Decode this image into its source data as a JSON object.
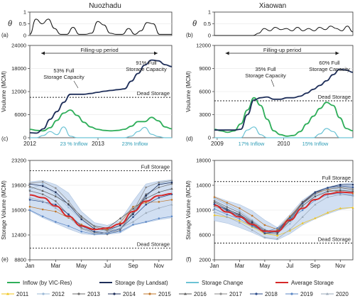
{
  "titles": {
    "left": "Nuozhadu",
    "right": "Xiaowan"
  },
  "panel_letters": {
    "a": "(a)",
    "b": "(b)",
    "c": "(c)",
    "d": "(d)",
    "e": "(e)",
    "f": "(f)"
  },
  "labels": {
    "theta": "θ",
    "volume_ylabel": "Voulume (MCM)",
    "storage_ylabel": "Storage Volume (MCM)",
    "filling": "Filling-up period",
    "dead_storage": "Dead Storage",
    "full_storage": "Full Storage"
  },
  "colors": {
    "inflow": "#2fae5a",
    "storage": "#1f2f5a",
    "change": "#6cc3d5",
    "average": "#d62828",
    "band": "#c9daf0",
    "band_edge": "#9fb8d8",
    "y2011": "#f0c419",
    "y2012": "#9bb8d6",
    "y2013": "#6d6d6d",
    "y2014": "#1f2f5a",
    "y2015": "#c0772a",
    "y2016": "#555555",
    "y2017": "#8a8a8a",
    "y2018": "#2a4a8a",
    "y2019": "#5a86c5",
    "y2020": "#9aa8b8"
  },
  "chart_data": [
    {
      "id": "a",
      "type": "line",
      "ylabel": "θ",
      "yticks": [
        "0",
        "0.5",
        "1"
      ],
      "ylim": [
        0,
        1
      ],
      "series": [
        {
          "values": [
            0.05,
            0.7,
            0.5,
            0.7,
            0.3,
            0.05,
            0.05,
            0.35,
            0.05,
            0.05,
            0.1,
            0.6,
            0.45,
            0.1,
            0.05,
            0.05,
            0.3,
            0.05,
            0.2,
            0.55,
            0.5,
            0.05,
            0.05,
            0.05
          ]
        }
      ]
    },
    {
      "id": "b",
      "type": "line",
      "ylabel": "θ",
      "yticks": [
        "0",
        "0.5",
        "1"
      ],
      "ylim": [
        0,
        1
      ],
      "series": [
        {
          "values": [
            0,
            0,
            0,
            0,
            0,
            0,
            0,
            0,
            0.1,
            0.3,
            0.2,
            0.35,
            0.25,
            0.3,
            0.2,
            0.35,
            0.2,
            0.3,
            0.2,
            0.35,
            0.25,
            0.4,
            0.3,
            0.2,
            0.4,
            0.15
          ]
        }
      ]
    },
    {
      "id": "c",
      "type": "line",
      "ylabel": "Voulume (MCM)",
      "yticks": [
        "0",
        "6000",
        "12000",
        "18000",
        "24000"
      ],
      "ylim": [
        0,
        24000
      ],
      "xticks": [
        "2012",
        "2013"
      ],
      "dead_storage": 10500,
      "annotations": [
        "53% Full Storage Capacity",
        "91% Full Storage Capacity",
        "23 % Inflow",
        "23% Inflow"
      ],
      "inflow": [
        2200,
        1900,
        1800,
        2600,
        4500,
        6400,
        7200,
        5800,
        4000,
        2800,
        2200,
        1900,
        1800,
        1900,
        2200,
        3000,
        4200,
        4200,
        5300,
        4400,
        2800,
        2300
      ],
      "storage": [
        1300,
        1200,
        2300,
        4800,
        6800,
        9200,
        11300,
        11300,
        11300,
        11500,
        11800,
        12100,
        12300,
        12500,
        12700,
        14700,
        16700,
        18900,
        20200,
        20000,
        19000,
        18500
      ],
      "change": [
        0,
        0,
        600,
        1600,
        800,
        2800,
        400,
        0,
        0,
        0,
        0,
        0,
        0,
        0,
        0,
        400,
        1600,
        2700,
        900,
        300,
        0,
        0
      ]
    },
    {
      "id": "d",
      "type": "line",
      "ylabel": "Voulume (MCM)",
      "yticks": [
        "0",
        "3000",
        "6000",
        "9000",
        "12000"
      ],
      "ylim": [
        0,
        12000
      ],
      "xticks": [
        "2009",
        "2010"
      ],
      "dead_storage": 4800,
      "annotations": [
        "35% Full Storage Capacity",
        "60% Full Storage Capacity",
        "17% Inflow",
        "15% Inflow"
      ],
      "inflow": [
        1100,
        900,
        700,
        900,
        1800,
        3600,
        5200,
        4200,
        2400,
        900,
        400,
        200,
        300,
        800,
        1800,
        2800,
        3800,
        4600,
        4200,
        2600,
        1200,
        900
      ],
      "storage": [
        1000,
        1000,
        1000,
        1000,
        1100,
        3000,
        4900,
        5200,
        5300,
        5000,
        5000,
        5200,
        5200,
        5400,
        5800,
        6300,
        6800,
        7400,
        8200,
        8900,
        8800,
        8500
      ],
      "change": [
        0,
        0,
        0,
        0,
        0,
        1000,
        1400,
        400,
        0,
        0,
        0,
        0,
        0,
        0,
        0,
        0,
        500,
        1200,
        800,
        0,
        0,
        0
      ]
    },
    {
      "id": "e",
      "type": "line",
      "ylabel": "Storage Volume (MCM)",
      "yticks": [
        "8800",
        "12400",
        "16000",
        "19600",
        "23200"
      ],
      "ylim": [
        8800,
        23200
      ],
      "xticks": [
        "Jan",
        "Mar",
        "May",
        "Jul",
        "Sep",
        "Nov"
      ],
      "full_storage": 21700,
      "dead_storage": 10500,
      "band_upper": [
        20100,
        20300,
        19700,
        18500,
        15800,
        14200,
        13800,
        14500,
        17300,
        19800,
        20200,
        20400
      ],
      "band_lower": [
        15900,
        14900,
        14100,
        13300,
        12600,
        12400,
        12500,
        12700,
        13800,
        14200,
        14600,
        14900
      ],
      "average": [
        18200,
        17800,
        16600,
        15100,
        13700,
        13200,
        13400,
        14000,
        15800,
        17300,
        18100,
        18400
      ],
      "years": [
        {
          "name": "2011",
          "values": [
            null,
            null,
            null,
            null,
            null,
            null,
            null,
            null,
            null,
            null,
            null,
            null
          ]
        },
        {
          "name": "2012",
          "values": [
            19000,
            19800,
            18300,
            16400,
            14600,
            13300,
            12900,
            13800,
            15600,
            17900,
            19800,
            20200
          ]
        },
        {
          "name": "2013",
          "values": [
            18800,
            18300,
            17300,
            15300,
            13400,
            12800,
            12500,
            13100,
            15700,
            18300,
            19300,
            19800
          ]
        },
        {
          "name": "2014",
          "values": [
            19800,
            19500,
            18600,
            16800,
            14700,
            13300,
            13100,
            13800,
            15400,
            18100,
            19700,
            20000
          ]
        },
        {
          "name": "2015",
          "values": [
            16500,
            16100,
            15800,
            14900,
            13900,
            13200,
            13200,
            14200,
            16500,
            17100,
            17200,
            17500
          ]
        },
        {
          "name": "2016",
          "values": [
            19400,
            18800,
            18000,
            16900,
            15100,
            13700,
            13400,
            14800,
            16200,
            17700,
            18600,
            19100
          ]
        },
        {
          "name": "2017",
          "values": [
            19900,
            20100,
            19200,
            17300,
            14900,
            13600,
            13000,
            13300,
            15800,
            19300,
            20000,
            20300
          ]
        },
        {
          "name": "2018",
          "values": [
            17500,
            17200,
            16800,
            15400,
            13700,
            12900,
            12700,
            13300,
            15000,
            16800,
            17800,
            18300
          ]
        },
        {
          "name": "2019",
          "values": [
            16000,
            15100,
            14300,
            13700,
            12900,
            12500,
            12600,
            12900,
            13900,
            14300,
            14800,
            15100
          ]
        },
        {
          "name": "2020",
          "values": [
            17800,
            17300,
            16300,
            15000,
            13300,
            12600,
            12800,
            13400,
            14300,
            15600,
            16300,
            16800
          ]
        }
      ]
    },
    {
      "id": "f",
      "type": "line",
      "ylabel": "Storage Volume (MCM)",
      "yticks": [
        "2000",
        "6000",
        "10000",
        "14000",
        "18000"
      ],
      "ylim": [
        2000,
        18000
      ],
      "xticks": [
        "Jan",
        "Mar",
        "May",
        "Jul",
        "Sep",
        "Nov"
      ],
      "full_storage": 14600,
      "dead_storage": 4700,
      "band_upper": [
        12200,
        11500,
        10900,
        9900,
        8400,
        7200,
        9300,
        11600,
        13000,
        13700,
        14200,
        14400
      ],
      "band_lower": [
        8300,
        7900,
        7200,
        6400,
        5500,
        5200,
        6200,
        7600,
        8600,
        9400,
        10100,
        10400
      ],
      "average": [
        10800,
        9700,
        8900,
        7700,
        6600,
        6600,
        8400,
        10300,
        11700,
        12600,
        12900,
        12800
      ],
      "years": [
        {
          "name": "2011",
          "values": [
            9200,
            8900,
            8300,
            7300,
            6200,
            5900,
            6700,
            7900,
            8700,
            9600,
            10300,
            10400
          ]
        },
        {
          "name": "2012",
          "values": [
            11900,
            10900,
            9900,
            8400,
            6900,
            6300,
            7800,
            10600,
            12400,
            13100,
            13300,
            13100
          ]
        },
        {
          "name": "2013",
          "values": [
            11500,
            10500,
            9600,
            8200,
            6800,
            6400,
            8400,
            11100,
            12600,
            13400,
            13600,
            13300
          ]
        },
        {
          "name": "2014",
          "values": [
            10900,
            10100,
            9300,
            8000,
            6600,
            6700,
            8900,
            11300,
            12900,
            13600,
            14100,
            14100
          ]
        },
        {
          "name": "2015",
          "values": [
            12100,
            11200,
            10300,
            9100,
            7600,
            6900,
            9000,
            11200,
            12800,
            13300,
            12900,
            12700
          ]
        },
        {
          "name": "2016",
          "values": [
            11300,
            10200,
            9200,
            7800,
            6300,
            6200,
            8300,
            10700,
            12200,
            13000,
            13200,
            13000
          ]
        },
        {
          "name": "2017",
          "values": [
            10600,
            9900,
            9100,
            7700,
            6300,
            6600,
            8700,
            11000,
            12600,
            13400,
            13700,
            13500
          ]
        },
        {
          "name": "2018",
          "values": [
            11000,
            10000,
            9000,
            7600,
            6300,
            6500,
            8700,
            11100,
            12800,
            13600,
            13900,
            13700
          ]
        },
        {
          "name": "2019",
          "values": [
            10200,
            9300,
            8600,
            7400,
            6500,
            7100,
            8600,
            10000,
            11600,
            12500,
            12700,
            12400
          ]
        },
        {
          "name": "2020",
          "values": [
            9700,
            8900,
            8000,
            6800,
            5600,
            5400,
            6900,
            8900,
            10900,
            12100,
            12500,
            12300
          ]
        }
      ]
    }
  ],
  "legend": {
    "row1": [
      {
        "key": "inflow",
        "label": "Inflow (by VIC-Res)"
      },
      {
        "key": "storage",
        "label": "Storage (by Landsat)"
      },
      {
        "key": "change",
        "label": "Storage Change"
      },
      {
        "key": "average",
        "label": "Average Storage"
      }
    ],
    "years": [
      "2011",
      "2012",
      "2013",
      "2014",
      "2015",
      "2016",
      "2017",
      "2018",
      "2019",
      "2020"
    ]
  }
}
